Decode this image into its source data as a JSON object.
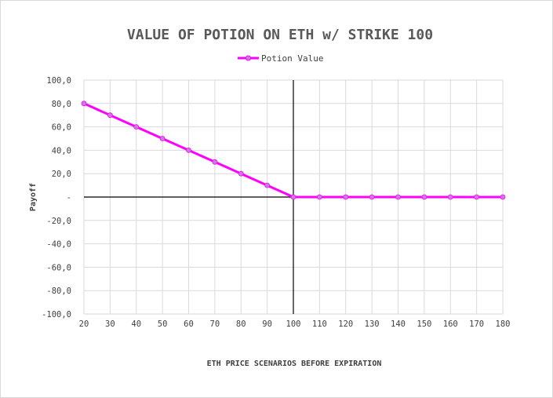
{
  "chart_data": {
    "type": "line",
    "title": "VALUE OF POTION ON ETH w/ STRIKE 100",
    "xlabel": "ETH PRICE SCENARIOS BEFORE EXPIRATION",
    "ylabel": "Payoff",
    "x": [
      20,
      30,
      40,
      50,
      60,
      70,
      80,
      90,
      100,
      110,
      120,
      130,
      140,
      150,
      160,
      170,
      180
    ],
    "x_tick_labels": [
      "20",
      "30",
      "40",
      "50",
      "60",
      "70",
      "80",
      "90",
      "100",
      "110",
      "120",
      "130",
      "140",
      "150",
      "160",
      "170",
      "180"
    ],
    "series": [
      {
        "name": "Potion Value",
        "color": "#ff00ff",
        "marker_color": "#c77ddb",
        "values": [
          80,
          70,
          60,
          50,
          40,
          30,
          20,
          10,
          0,
          0,
          0,
          0,
          0,
          0,
          0,
          0,
          0
        ]
      }
    ],
    "ylim": [
      -100,
      100
    ],
    "y_ticks": [
      100,
      80,
      60,
      40,
      20,
      0,
      -20,
      -40,
      -60,
      -80,
      -100
    ],
    "y_tick_labels": [
      "100,0",
      "80,0",
      "60,0",
      "40,0",
      "20,0",
      "-",
      "-20,0",
      "-40,0",
      "-60,0",
      "-80,0",
      "-100,0"
    ],
    "vertical_reference_x": 100,
    "grid": true,
    "legend_position": "top-center"
  }
}
